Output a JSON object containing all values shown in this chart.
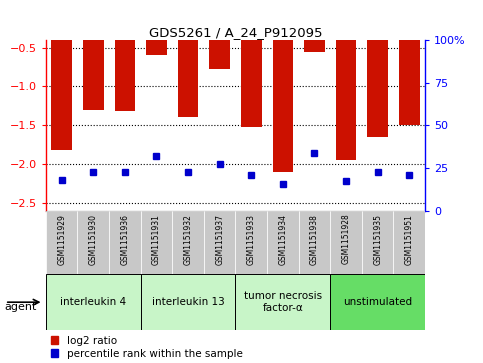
{
  "title": "GDS5261 / A_24_P912095",
  "samples": [
    "GSM1151929",
    "GSM1151930",
    "GSM1151936",
    "GSM1151931",
    "GSM1151932",
    "GSM1151937",
    "GSM1151933",
    "GSM1151934",
    "GSM1151938",
    "GSM1151928",
    "GSM1151935",
    "GSM1151951"
  ],
  "log2_ratio": [
    -1.82,
    -1.3,
    -1.32,
    -0.6,
    -1.4,
    -0.78,
    -1.52,
    -2.1,
    -0.55,
    -1.95,
    -1.65,
    -1.5
  ],
  "percentile": [
    15,
    20,
    20,
    30,
    20,
    25,
    18,
    12,
    32,
    14,
    20,
    18
  ],
  "group_spans": [
    {
      "start": 0,
      "end": 2,
      "label": "interleukin 4",
      "color": "#c8f5c8"
    },
    {
      "start": 3,
      "end": 5,
      "label": "interleukin 13",
      "color": "#c8f5c8"
    },
    {
      "start": 6,
      "end": 8,
      "label": "tumor necrosis\nfactor-α",
      "color": "#c8f5c8"
    },
    {
      "start": 9,
      "end": 11,
      "label": "unstimulated",
      "color": "#66dd66"
    }
  ],
  "ylim_left": [
    -2.6,
    -0.4
  ],
  "yticks_left": [
    -2.5,
    -2.0,
    -1.5,
    -1.0,
    -0.5
  ],
  "ylim_right": [
    0,
    100
  ],
  "yticks_right": [
    0,
    25,
    50,
    75,
    100
  ],
  "yticklabels_right": [
    "0",
    "25",
    "50",
    "75",
    "100%"
  ],
  "bar_color": "#cc1100",
  "dot_color": "#0000cc",
  "sample_bg": "#c8c8c8",
  "plot_bg": "#ffffff",
  "agent_label": "agent"
}
